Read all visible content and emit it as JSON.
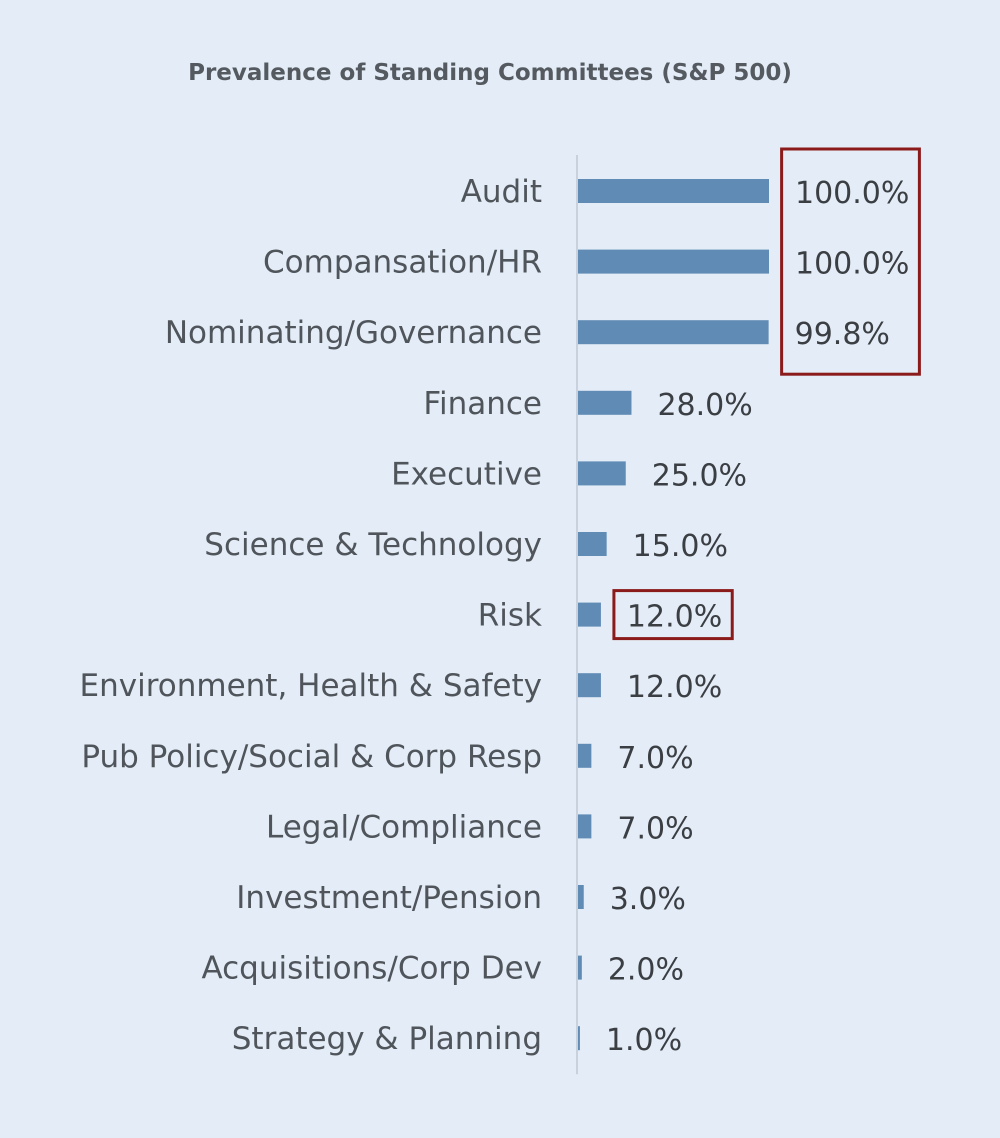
{
  "chart_data": {
    "type": "bar",
    "orientation": "horizontal",
    "title": "Prevalence of Standing Committees (S&P 500)",
    "xlabel": "",
    "ylabel": "",
    "xlim": [
      0,
      100
    ],
    "grid": false,
    "legend": "none",
    "categories": [
      "Audit",
      "Compansation/HR",
      "Nominating/Governance",
      "Finance",
      "Executive",
      "Science & Technology",
      "Risk",
      "Environment, Health & Safety",
      "Pub Policy/Social & Corp Resp",
      "Legal/Compliance",
      "Investment/Pension",
      "Acquisitions/Corp Dev",
      "Strategy & Planning"
    ],
    "values": [
      100.0,
      100.0,
      99.8,
      28.0,
      25.0,
      15.0,
      12.0,
      12.0,
      7.0,
      7.0,
      3.0,
      2.0,
      1.0
    ],
    "data_labels": [
      "100.0%",
      "100.0%",
      "99.8%",
      "28.0%",
      "25.0%",
      "15.0%",
      "12.0%",
      "12.0%",
      "7.0%",
      "7.0%",
      "3.0%",
      "2.0%",
      "1.0%"
    ],
    "highlighted_groups": [
      [
        "Audit",
        "Compansation/HR",
        "Nominating/Governance"
      ],
      [
        "Risk"
      ]
    ],
    "colors": {
      "background": "#e4edf7",
      "bar": "#5f8bb5",
      "axis": "#c9d2dc",
      "highlight_box": "#8b1a1a",
      "category_text": "#50555b",
      "value_text": "#3b3f44",
      "title_text": "#555a60"
    }
  }
}
